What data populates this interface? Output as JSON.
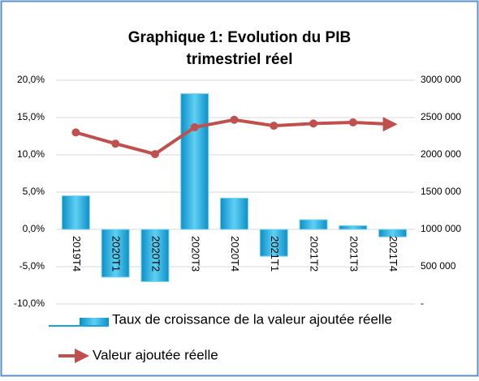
{
  "chart_data": {
    "type": "combo",
    "title": [
      "Graphique 1: Evolution du PIB",
      "trimestriel réel"
    ],
    "categories": [
      "2019T4",
      "2020T1",
      "2020T2",
      "2020T3",
      "2020T4",
      "2021T1",
      "2021T2",
      "2021T3",
      "2021T4"
    ],
    "series": [
      {
        "name": "Taux de croissance de la valeur ajoutée réelle",
        "type": "bar",
        "color": "#1aa3d9",
        "values": [
          4.5,
          -6.4,
          -7.0,
          18.2,
          4.2,
          -3.6,
          1.3,
          0.5,
          -1.0
        ]
      },
      {
        "name": "Valeur ajoutée réelle",
        "type": "line",
        "axis": "y2",
        "color": "#c0504d",
        "values": [
          2300000,
          2150000,
          2010000,
          2370000,
          2470000,
          2390000,
          2420000,
          2435000,
          2410000
        ]
      }
    ],
    "ylim": [
      -10,
      20
    ],
    "yticks": [
      {
        "value": -10,
        "label": "-10,0%"
      },
      {
        "value": -5,
        "label": "-5,0%"
      },
      {
        "value": 0,
        "label": "0,0%"
      },
      {
        "value": 5,
        "label": "5,0%"
      },
      {
        "value": 10,
        "label": "10,0%"
      },
      {
        "value": 15,
        "label": "15,0%"
      },
      {
        "value": 20,
        "label": "20,0%"
      }
    ],
    "y2lim": [
      0,
      3000000
    ],
    "y2ticks": [
      {
        "value": 0,
        "label": "-"
      },
      {
        "value": 500000,
        "label": "500 000"
      },
      {
        "value": 1000000,
        "label": "1000 000"
      },
      {
        "value": 1500000,
        "label": "1500 000"
      },
      {
        "value": 2000000,
        "label": "2000 000"
      },
      {
        "value": 2500000,
        "label": "2500 000"
      },
      {
        "value": 3000000,
        "label": "3000 000"
      }
    ],
    "grid": true,
    "legend": "bottom"
  }
}
